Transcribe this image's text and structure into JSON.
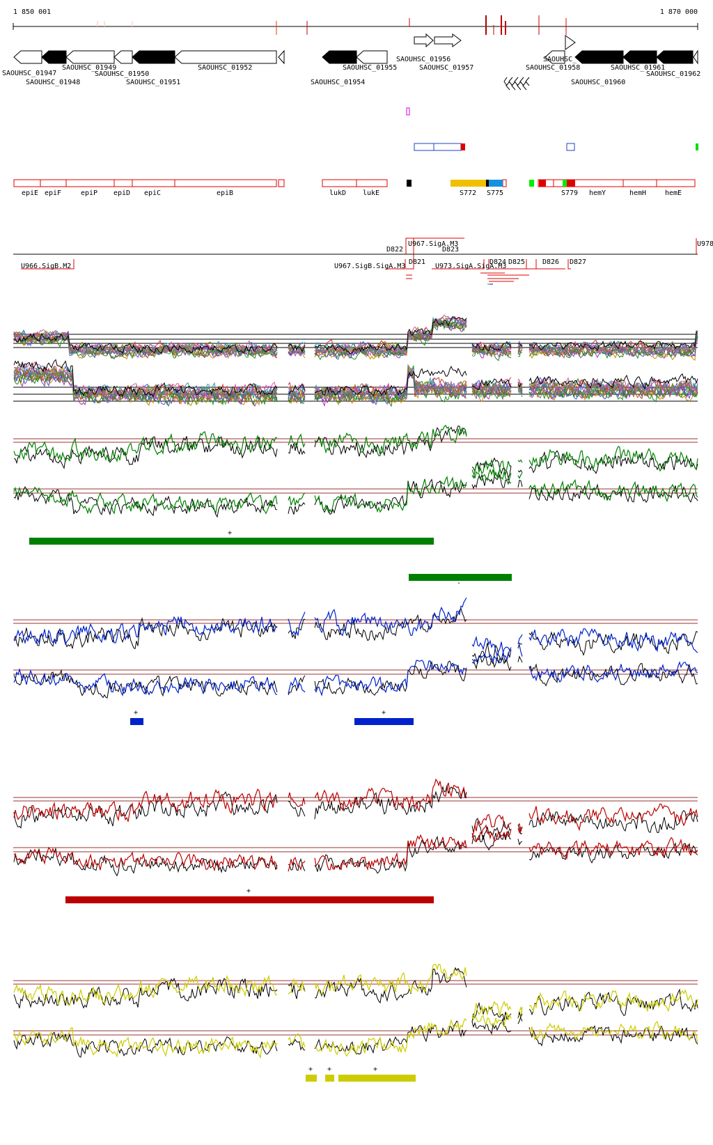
{
  "coordinates": {
    "start": "1 850 001",
    "end": "1 870 000"
  },
  "genes": [
    {
      "name": "SAOUHSC_01947",
      "strand": "-",
      "fill": "white"
    },
    {
      "name": "SAOUHSC_01948",
      "strand": "-",
      "fill": "black"
    },
    {
      "name": "SAOUHSC_01949",
      "strand": "-",
      "fill": "white"
    },
    {
      "name": "SAOUHSC_01950",
      "strand": "-",
      "fill": "white"
    },
    {
      "name": "SAOUHSC_01951",
      "strand": "-",
      "fill": "black"
    },
    {
      "name": "SAOUHSC_01952",
      "strand": "-",
      "fill": "white"
    },
    {
      "name": "SAOUHSC_01954",
      "strand": "-",
      "fill": "black"
    },
    {
      "name": "SAOUHSC_01955",
      "strand": "-",
      "fill": "white"
    },
    {
      "name": "SAOUHSC_01956",
      "strand": "+",
      "fill": "white"
    },
    {
      "name": "SAOUHSC_01957",
      "strand": "+",
      "fill": "white"
    },
    {
      "name": "SAOUHSC_01958",
      "strand": "-",
      "fill": "white"
    },
    {
      "name": "SAOUHSC_01960",
      "strand": "-",
      "fill": "black"
    },
    {
      "name": "SAOUHSC_01961",
      "strand": "-",
      "fill": "black"
    },
    {
      "name": "SAOUHSC_01962",
      "strand": "-",
      "fill": "black"
    }
  ],
  "gene_label_overlap": "SAOUHSC_",
  "annotations": [
    "epiE",
    "epiF",
    "epiP",
    "epiD",
    "epiC",
    "epiB",
    "lukD",
    "lukE",
    "S772",
    "S775",
    "S779",
    "hemY",
    "hemH",
    "hemE"
  ],
  "segments": {
    "above": [
      "D822",
      "U967.SigA.M3",
      "D823",
      "U978"
    ],
    "below": [
      "U966.SigB.M2",
      "U967.SigB.SigA.M3",
      "D821",
      "U973.SigA.SigA.M3",
      "D824",
      "D825",
      "D826",
      "D827"
    ]
  },
  "condition_markers": {
    "green": [
      "+",
      "-"
    ],
    "blue": [
      "+",
      "+"
    ],
    "red": [
      "+"
    ],
    "yellow": [
      "+",
      "+",
      "+"
    ]
  },
  "colors": {
    "green": "#008000",
    "blue": "#0022cc",
    "red": "#bb0000",
    "yellow": "#cccc00",
    "ref_line": "#993333",
    "annotation_border": "#e00000"
  }
}
